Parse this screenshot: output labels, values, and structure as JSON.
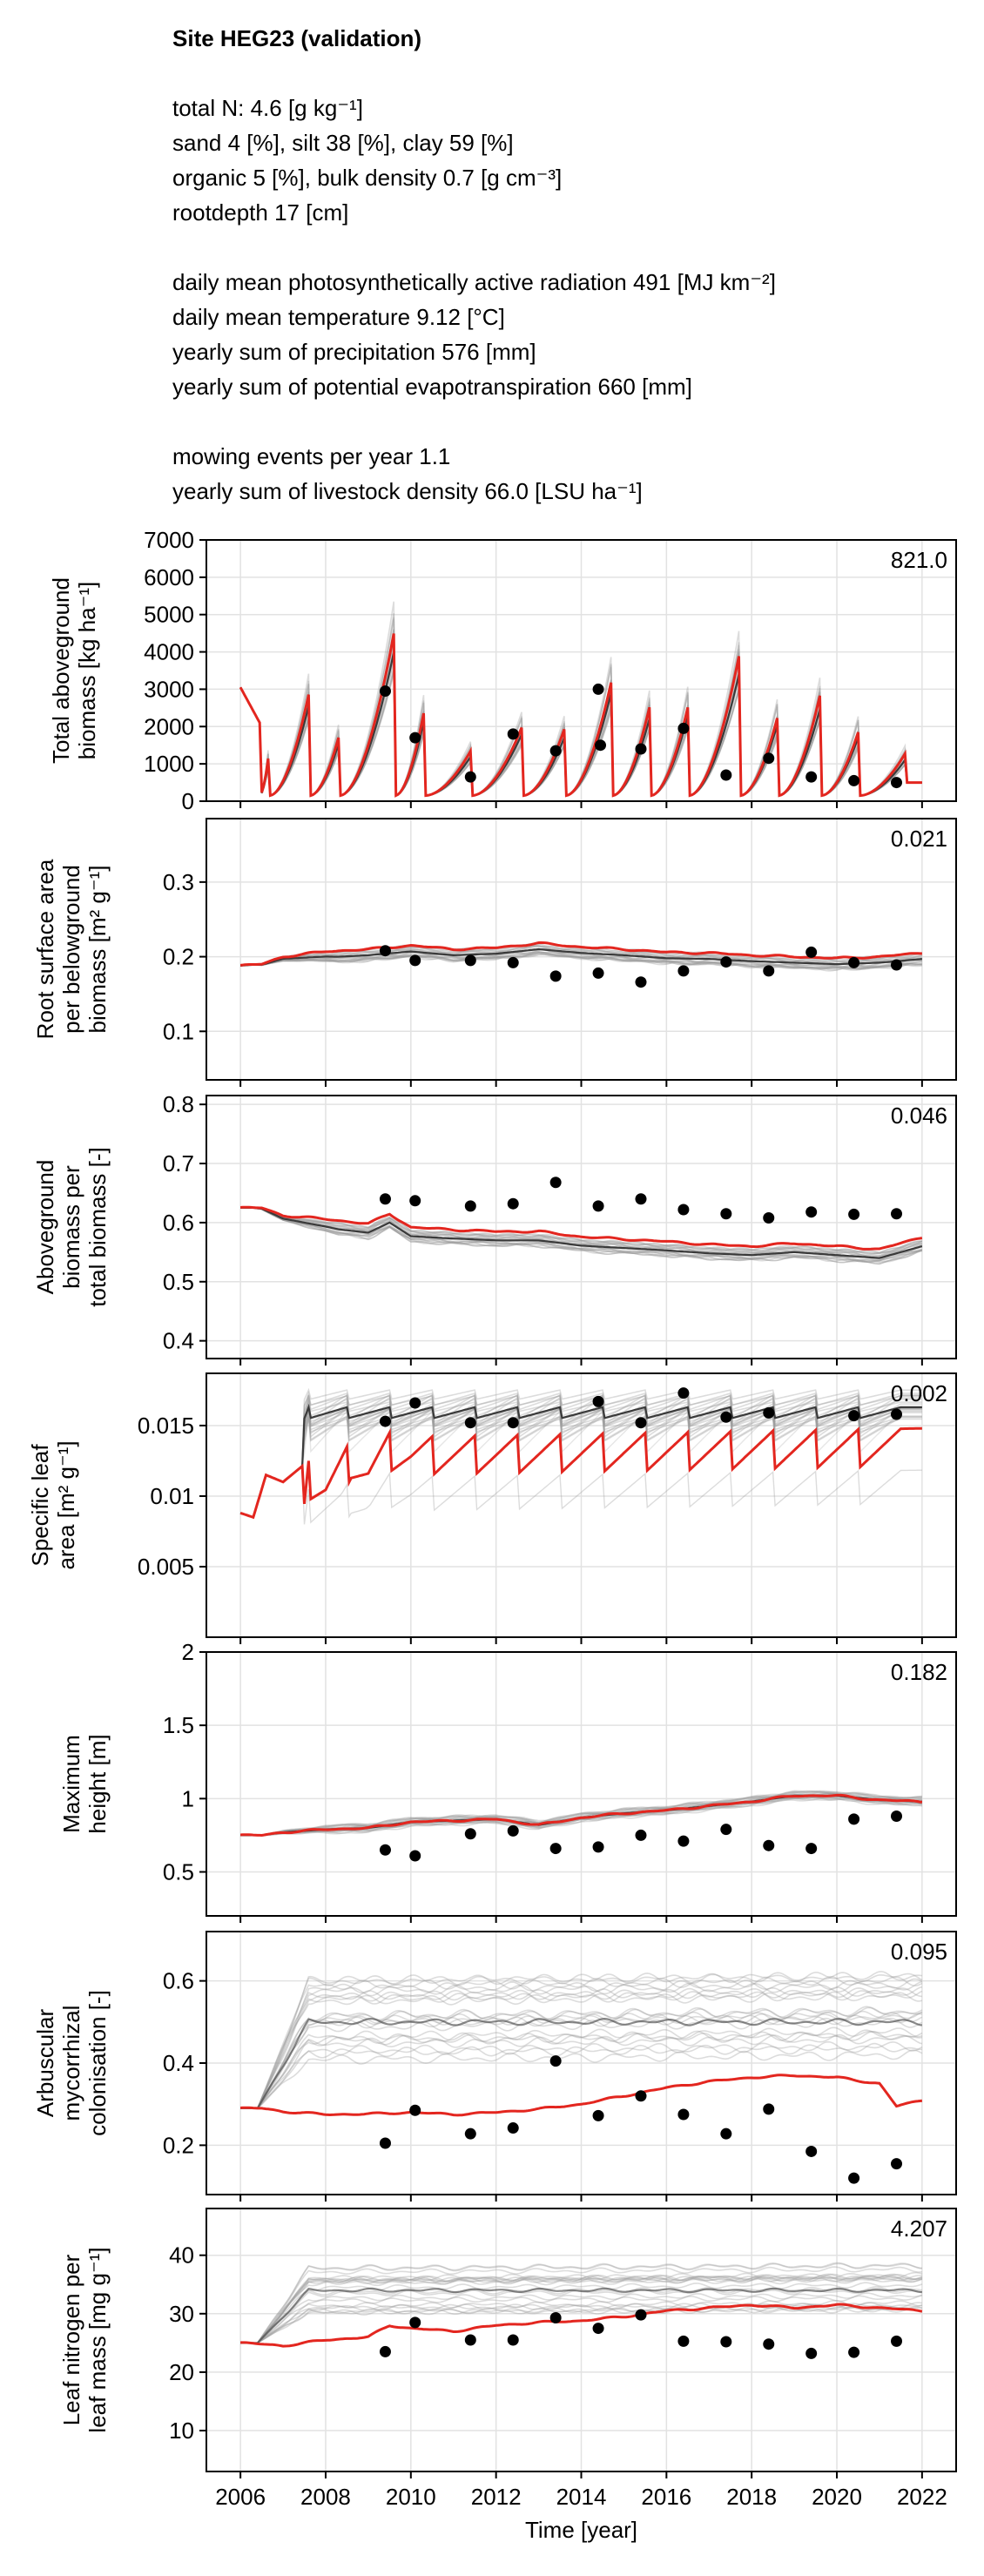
{
  "header": {
    "title": "Site HEG23 (validation)",
    "soil_lines": [
      "total N: 4.6 [g kg⁻¹]",
      "sand 4 [%], silt 38 [%], clay 59 [%]",
      "organic 5 [%], bulk density 0.7 [g cm⁻³]",
      "rootdepth 17 [cm]"
    ],
    "climate_lines": [
      "daily mean photosynthetically active radiation 491 [MJ km⁻²]",
      "daily mean temperature 9.12 [°C]",
      "yearly sum of precipitation 576 [mm]",
      "yearly sum of potential evapotranspiration 660 [mm]"
    ],
    "management_lines": [
      "mowing events per year 1.1",
      "yearly sum of livestock density 66.0 [LSU ha⁻¹]"
    ]
  },
  "colors": {
    "model": "#e3261f",
    "ensemble": "#9a9a9a",
    "observed": "#000000",
    "grid": "#e2e2e2",
    "axis": "#000000"
  },
  "x_axis": {
    "label": "Time [year]",
    "ticks": [
      2006,
      2008,
      2010,
      2012,
      2014,
      2016,
      2018,
      2020,
      2022
    ],
    "range": [
      2005.2,
      2022.8
    ]
  },
  "chart_data": [
    {
      "type": "line",
      "ylabel_lines": [
        "Total aboveground",
        "biomass [kg ha⁻¹]"
      ],
      "ylim": [
        0,
        7000
      ],
      "yticks": [
        0,
        1000,
        2000,
        3000,
        4000,
        5000,
        6000,
        7000
      ],
      "annotation": "821.0",
      "mode": "biomass",
      "start": 3050,
      "cuts": [
        {
          "x": 2006.65,
          "peak": 1200
        },
        {
          "x": 2007.6,
          "peak": 3000
        },
        {
          "x": 2008.3,
          "peak": 1800
        },
        {
          "x": 2009.6,
          "peak": 4700
        },
        {
          "x": 2010.3,
          "peak": 2500
        },
        {
          "x": 2011.4,
          "peak": 1400
        },
        {
          "x": 2012.6,
          "peak": 2100
        },
        {
          "x": 2013.6,
          "peak": 2000
        },
        {
          "x": 2014.7,
          "peak": 3400
        },
        {
          "x": 2015.6,
          "peak": 2600
        },
        {
          "x": 2016.5,
          "peak": 2700
        },
        {
          "x": 2017.7,
          "peak": 4000
        },
        {
          "x": 2018.6,
          "peak": 2400
        },
        {
          "x": 2019.6,
          "peak": 2900
        },
        {
          "x": 2020.5,
          "peak": 2000
        },
        {
          "x": 2021.6,
          "peak": 1300
        }
      ],
      "observed": [
        {
          "x": 2009.4,
          "y": 2950
        },
        {
          "x": 2010.1,
          "y": 1700
        },
        {
          "x": 2011.4,
          "y": 650
        },
        {
          "x": 2012.4,
          "y": 1800
        },
        {
          "x": 2013.4,
          "y": 1350
        },
        {
          "x": 2014.4,
          "y": 3000
        },
        {
          "x": 2014.45,
          "y": 1500
        },
        {
          "x": 2015.4,
          "y": 1400
        },
        {
          "x": 2016.4,
          "y": 1950
        },
        {
          "x": 2017.4,
          "y": 700
        },
        {
          "x": 2018.4,
          "y": 1150
        },
        {
          "x": 2019.4,
          "y": 650
        },
        {
          "x": 2020.4,
          "y": 550
        },
        {
          "x": 2021.4,
          "y": 500
        }
      ]
    },
    {
      "type": "line",
      "ylabel_lines": [
        "Root surface area",
        "per belowground",
        "biomass [m² g⁻¹]"
      ],
      "ylim": [
        0.035,
        0.385
      ],
      "yticks": [
        0.1,
        0.2,
        0.3
      ],
      "annotation": "0.021",
      "mode": "smooth",
      "model": [
        [
          2006.0,
          0.188
        ],
        [
          2006.5,
          0.19
        ],
        [
          2007.0,
          0.2
        ],
        [
          2008.0,
          0.207
        ],
        [
          2009.0,
          0.21
        ],
        [
          2010.0,
          0.215
        ],
        [
          2011.0,
          0.21
        ],
        [
          2012.0,
          0.212
        ],
        [
          2013.0,
          0.218
        ],
        [
          2014.0,
          0.213
        ],
        [
          2015.0,
          0.21
        ],
        [
          2016.0,
          0.206
        ],
        [
          2017.0,
          0.205
        ],
        [
          2018.0,
          0.202
        ],
        [
          2019.0,
          0.2
        ],
        [
          2020.0,
          0.198
        ],
        [
          2021.0,
          0.2
        ],
        [
          2022.0,
          0.205
        ]
      ],
      "ensemble_spread": 0.015,
      "ensemble_offset": -0.008,
      "observed": [
        {
          "x": 2009.4,
          "y": 0.208
        },
        {
          "x": 2010.1,
          "y": 0.195
        },
        {
          "x": 2011.4,
          "y": 0.195
        },
        {
          "x": 2012.4,
          "y": 0.192
        },
        {
          "x": 2013.4,
          "y": 0.174
        },
        {
          "x": 2014.4,
          "y": 0.178
        },
        {
          "x": 2015.4,
          "y": 0.166
        },
        {
          "x": 2016.4,
          "y": 0.181
        },
        {
          "x": 2017.4,
          "y": 0.193
        },
        {
          "x": 2018.4,
          "y": 0.181
        },
        {
          "x": 2019.4,
          "y": 0.206
        },
        {
          "x": 2020.4,
          "y": 0.192
        },
        {
          "x": 2021.4,
          "y": 0.189
        }
      ]
    },
    {
      "type": "line",
      "ylabel_lines": [
        "Aboveground",
        "biomass per",
        "total biomass [-]"
      ],
      "ylim": [
        0.37,
        0.815
      ],
      "yticks": [
        0.4,
        0.5,
        0.6,
        0.7,
        0.8
      ],
      "annotation": "0.046",
      "mode": "smooth",
      "model": [
        [
          2006.0,
          0.625
        ],
        [
          2006.5,
          0.625
        ],
        [
          2007.0,
          0.612
        ],
        [
          2008.0,
          0.606
        ],
        [
          2009.0,
          0.598
        ],
        [
          2009.5,
          0.615
        ],
        [
          2010.0,
          0.592
        ],
        [
          2011.0,
          0.588
        ],
        [
          2012.0,
          0.585
        ],
        [
          2013.0,
          0.585
        ],
        [
          2014.0,
          0.576
        ],
        [
          2015.0,
          0.572
        ],
        [
          2016.0,
          0.568
        ],
        [
          2017.0,
          0.563
        ],
        [
          2018.0,
          0.56
        ],
        [
          2019.0,
          0.565
        ],
        [
          2020.0,
          0.56
        ],
        [
          2021.0,
          0.555
        ],
        [
          2022.0,
          0.575
        ]
      ],
      "ensemble_spread": 0.02,
      "ensemble_offset": -0.015,
      "observed": [
        {
          "x": 2009.4,
          "y": 0.64
        },
        {
          "x": 2010.1,
          "y": 0.637
        },
        {
          "x": 2011.4,
          "y": 0.628
        },
        {
          "x": 2012.4,
          "y": 0.632
        },
        {
          "x": 2013.4,
          "y": 0.668
        },
        {
          "x": 2014.4,
          "y": 0.628
        },
        {
          "x": 2015.4,
          "y": 0.64
        },
        {
          "x": 2016.4,
          "y": 0.622
        },
        {
          "x": 2017.4,
          "y": 0.615
        },
        {
          "x": 2018.4,
          "y": 0.608
        },
        {
          "x": 2019.4,
          "y": 0.618
        },
        {
          "x": 2020.4,
          "y": 0.614
        },
        {
          "x": 2021.4,
          "y": 0.615
        }
      ]
    },
    {
      "type": "line",
      "ylabel_lines": [
        "Specific leaf",
        "area [m² g⁻¹]"
      ],
      "ylim": [
        0.0,
        0.0187
      ],
      "yticks": [
        0.005,
        0.01,
        0.015
      ],
      "annotation": "0.002",
      "mode": "sawtooth",
      "model": [
        [
          2006.0,
          0.0088
        ],
        [
          2006.3,
          0.0085
        ],
        [
          2006.6,
          0.0115
        ],
        [
          2007.0,
          0.011
        ],
        [
          2007.6,
          0.0125
        ],
        [
          2008.0,
          0.012
        ],
        [
          2008.6,
          0.0138
        ],
        [
          2009.0,
          0.013
        ],
        [
          2009.5,
          0.0145
        ],
        [
          2010.0,
          0.0142
        ],
        [
          2022.0,
          0.0148
        ]
      ],
      "teeth": [
        2007.6,
        2008.5,
        2009.5,
        2010.5,
        2011.5,
        2012.5,
        2013.5,
        2014.5,
        2015.5,
        2016.5,
        2017.5,
        2018.5,
        2019.5,
        2020.5,
        2021.5
      ],
      "ensemble_level": 0.0163,
      "observed": [
        {
          "x": 2009.4,
          "y": 0.0153
        },
        {
          "x": 2010.1,
          "y": 0.0166
        },
        {
          "x": 2011.4,
          "y": 0.0152
        },
        {
          "x": 2012.4,
          "y": 0.0152
        },
        {
          "x": 2014.4,
          "y": 0.0167
        },
        {
          "x": 2015.4,
          "y": 0.0152
        },
        {
          "x": 2016.4,
          "y": 0.0173
        },
        {
          "x": 2017.4,
          "y": 0.0156
        },
        {
          "x": 2018.4,
          "y": 0.0159
        },
        {
          "x": 2020.4,
          "y": 0.0157
        },
        {
          "x": 2021.4,
          "y": 0.0158
        }
      ]
    },
    {
      "type": "line",
      "ylabel_lines": [
        "Maximum",
        "height [m]"
      ],
      "ylim": [
        0.2,
        2.0
      ],
      "yticks": [
        0.5,
        1.0,
        1.5,
        2.0
      ],
      "annotation": "0.182",
      "mode": "smooth",
      "model": [
        [
          2006.0,
          0.75
        ],
        [
          2006.5,
          0.75
        ],
        [
          2007.0,
          0.77
        ],
        [
          2008.0,
          0.79
        ],
        [
          2009.0,
          0.8
        ],
        [
          2010.0,
          0.84
        ],
        [
          2011.0,
          0.85
        ],
        [
          2012.0,
          0.86
        ],
        [
          2013.0,
          0.82
        ],
        [
          2014.0,
          0.87
        ],
        [
          2015.0,
          0.9
        ],
        [
          2016.0,
          0.92
        ],
        [
          2017.0,
          0.95
        ],
        [
          2018.0,
          0.98
        ],
        [
          2019.0,
          1.02
        ],
        [
          2020.0,
          1.02
        ],
        [
          2021.0,
          0.99
        ],
        [
          2022.0,
          0.98
        ]
      ],
      "ensemble_spread": 0.06,
      "ensemble_offset": 0.0,
      "observed": [
        {
          "x": 2009.4,
          "y": 0.65
        },
        {
          "x": 2010.1,
          "y": 0.61
        },
        {
          "x": 2011.4,
          "y": 0.76
        },
        {
          "x": 2012.4,
          "y": 0.78
        },
        {
          "x": 2013.4,
          "y": 0.66
        },
        {
          "x": 2014.4,
          "y": 0.67
        },
        {
          "x": 2015.4,
          "y": 0.75
        },
        {
          "x": 2016.4,
          "y": 0.71
        },
        {
          "x": 2017.4,
          "y": 0.79
        },
        {
          "x": 2018.4,
          "y": 0.68
        },
        {
          "x": 2019.4,
          "y": 0.66
        },
        {
          "x": 2020.4,
          "y": 0.86
        },
        {
          "x": 2021.4,
          "y": 0.88
        }
      ]
    },
    {
      "type": "line",
      "ylabel_lines": [
        "Arbuscular",
        "mycorrhizal",
        "colonisation [-]"
      ],
      "ylim": [
        0.08,
        0.72
      ],
      "yticks": [
        0.2,
        0.4,
        0.6
      ],
      "annotation": "0.095",
      "mode": "smooth",
      "model": [
        [
          2006.0,
          0.29
        ],
        [
          2006.5,
          0.29
        ],
        [
          2007.0,
          0.282
        ],
        [
          2008.0,
          0.275
        ],
        [
          2009.0,
          0.276
        ],
        [
          2010.0,
          0.28
        ],
        [
          2011.0,
          0.275
        ],
        [
          2012.0,
          0.28
        ],
        [
          2013.0,
          0.288
        ],
        [
          2014.0,
          0.3
        ],
        [
          2015.0,
          0.32
        ],
        [
          2016.0,
          0.34
        ],
        [
          2017.0,
          0.355
        ],
        [
          2018.0,
          0.365
        ],
        [
          2019.0,
          0.37
        ],
        [
          2020.0,
          0.365
        ],
        [
          2021.0,
          0.35
        ],
        [
          2021.4,
          0.295
        ],
        [
          2022.0,
          0.31
        ]
      ],
      "ensemble_band": [
        0.4,
        0.6
      ],
      "observed": [
        {
          "x": 2009.4,
          "y": 0.205
        },
        {
          "x": 2010.1,
          "y": 0.285
        },
        {
          "x": 2011.4,
          "y": 0.228
        },
        {
          "x": 2012.4,
          "y": 0.242
        },
        {
          "x": 2013.4,
          "y": 0.405
        },
        {
          "x": 2014.4,
          "y": 0.272
        },
        {
          "x": 2015.4,
          "y": 0.32
        },
        {
          "x": 2016.4,
          "y": 0.275
        },
        {
          "x": 2017.4,
          "y": 0.228
        },
        {
          "x": 2018.4,
          "y": 0.288
        },
        {
          "x": 2019.4,
          "y": 0.185
        },
        {
          "x": 2020.4,
          "y": 0.12
        },
        {
          "x": 2021.4,
          "y": 0.155
        }
      ]
    },
    {
      "type": "line",
      "ylabel_lines": [
        "Leaf nitrogen per",
        "leaf mass [mg g⁻¹]"
      ],
      "ylim": [
        3,
        48
      ],
      "yticks": [
        10,
        20,
        30,
        40
      ],
      "annotation": "4.207",
      "mode": "smooth",
      "model": [
        [
          2006.0,
          25.0
        ],
        [
          2006.5,
          24.8
        ],
        [
          2007.0,
          24.5
        ],
        [
          2008.0,
          25.5
        ],
        [
          2009.0,
          26.0
        ],
        [
          2009.5,
          28.0
        ],
        [
          2010.0,
          27.5
        ],
        [
          2011.0,
          27.0
        ],
        [
          2012.0,
          28.0
        ],
        [
          2013.0,
          28.5
        ],
        [
          2014.0,
          28.8
        ],
        [
          2015.0,
          29.5
        ],
        [
          2016.0,
          30.5
        ],
        [
          2017.0,
          31.0
        ],
        [
          2018.0,
          31.5
        ],
        [
          2019.0,
          31.0
        ],
        [
          2020.0,
          31.5
        ],
        [
          2021.0,
          31.0
        ],
        [
          2022.0,
          30.5
        ]
      ],
      "ensemble_band": [
        30,
        38
      ],
      "observed": [
        {
          "x": 2009.4,
          "y": 23.5
        },
        {
          "x": 2010.1,
          "y": 28.5
        },
        {
          "x": 2011.4,
          "y": 25.5
        },
        {
          "x": 2012.4,
          "y": 25.5
        },
        {
          "x": 2013.4,
          "y": 29.3
        },
        {
          "x": 2014.4,
          "y": 27.5
        },
        {
          "x": 2015.4,
          "y": 29.8
        },
        {
          "x": 2016.4,
          "y": 25.3
        },
        {
          "x": 2017.4,
          "y": 25.2
        },
        {
          "x": 2018.4,
          "y": 24.8
        },
        {
          "x": 2019.4,
          "y": 23.2
        },
        {
          "x": 2020.4,
          "y": 23.4
        },
        {
          "x": 2021.4,
          "y": 25.3
        }
      ]
    }
  ]
}
